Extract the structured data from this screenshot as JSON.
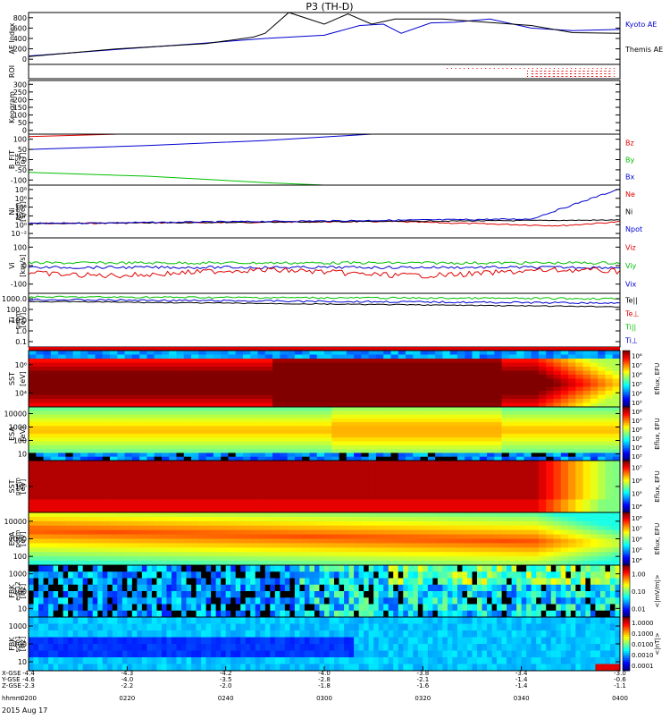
{
  "title": "P3 (TH-D)",
  "date": "2015 Aug 17",
  "footer": {
    "row_labels": [
      "X-GSE",
      "Y-GSE",
      "Z-GSE",
      "hhmm"
    ],
    "ticks": [
      {
        "x": "-4.4",
        "y": "-4.6",
        "z": "-2.3",
        "t": "0200"
      },
      {
        "x": "-4.3",
        "y": "-4.0",
        "z": "-2.2",
        "t": "0220"
      },
      {
        "x": "-4.2",
        "y": "-3.5",
        "z": "-2.0",
        "t": "0240"
      },
      {
        "x": "-4.0",
        "y": "-2.8",
        "z": "-1.8",
        "t": "0300"
      },
      {
        "x": "-3.8",
        "y": "-2.1",
        "z": "-1.6",
        "t": "0320"
      },
      {
        "x": "-3.4",
        "y": "-1.4",
        "z": "-1.4",
        "t": "0340"
      },
      {
        "x": "-3.0",
        "y": "-0.6",
        "z": "-1.1",
        "t": "0400"
      }
    ]
  },
  "colors": {
    "red": "#e00000",
    "green": "#00c000",
    "blue": "#0000d0",
    "black": "#000000"
  },
  "chart_data": [
    {
      "id": "ae",
      "type": "line",
      "ylabel": "AE Index",
      "yticks": [
        "800",
        "600",
        "400",
        "200",
        "0"
      ],
      "ylim": [
        0,
        800
      ],
      "series": [
        {
          "name": "Kyoto AE",
          "color": "blue",
          "x": [
            0,
            15,
            30,
            40,
            50,
            56,
            60,
            63,
            68,
            72,
            78,
            85,
            92,
            100
          ],
          "y": [
            130,
            230,
            330,
            400,
            450,
            600,
            620,
            480,
            640,
            650,
            700,
            560,
            520,
            540
          ]
        },
        {
          "name": "Themis AE",
          "color": "black",
          "x": [
            0,
            15,
            30,
            38,
            40,
            44,
            50,
            54,
            58,
            62,
            70,
            85,
            92,
            100
          ],
          "y": [
            120,
            240,
            320,
            420,
            480,
            800,
            620,
            780,
            620,
            700,
            700,
            600,
            490,
            480
          ]
        }
      ]
    },
    {
      "id": "roi",
      "type": "line",
      "ylabel": "ROI",
      "yticks": []
    },
    {
      "id": "keogram",
      "type": "line",
      "ylabel": "Keogram",
      "yticks": [
        "300",
        "250",
        "200",
        "150",
        "100",
        "50",
        "0"
      ]
    },
    {
      "id": "bfit",
      "type": "line",
      "ylabel": "B_FIT",
      "ylabel2": "GSE",
      "ylabel3": "[nT]",
      "yticks": [
        "100",
        "50",
        "0",
        "-50",
        "-100"
      ],
      "ylim": [
        -100,
        100
      ],
      "series": [
        {
          "name": "Bz",
          "color": "red",
          "x": [
            0,
            15
          ],
          "y": [
            90,
            100
          ]
        },
        {
          "name": "By",
          "color": "green",
          "x": [
            0,
            20,
            40,
            50
          ],
          "y": [
            -50,
            -65,
            -90,
            -100
          ]
        },
        {
          "name": "Bx",
          "color": "blue",
          "x": [
            0,
            20,
            40,
            58
          ],
          "y": [
            40,
            55,
            75,
            100
          ]
        }
      ]
    },
    {
      "id": "ni",
      "type": "line",
      "ylabel": "Ni",
      "ylabel2": "peem",
      "ylabel3": "[1/cc]",
      "yticks": [
        "10⁸",
        "10⁶",
        "10⁴",
        "10²",
        "10⁰",
        "10⁻²"
      ],
      "ylim": [
        -2,
        8
      ],
      "series": [
        {
          "name": "Ne",
          "color": "red"
        },
        {
          "name": "Ni",
          "color": "black"
        },
        {
          "name": "Npot",
          "color": "blue"
        }
      ]
    },
    {
      "id": "vi",
      "type": "line",
      "ylabel": "Vi",
      "ylabel3": "[km/s]",
      "yticks": [
        "100",
        "0",
        "-100"
      ],
      "ylim": [
        -150,
        150
      ],
      "series": [
        {
          "name": "Viz",
          "color": "red"
        },
        {
          "name": "Viy",
          "color": "green"
        },
        {
          "name": "Vix",
          "color": "blue"
        }
      ]
    },
    {
      "id": "ti",
      "type": "line",
      "ylabel": "Ti",
      "ylabel2": "peem",
      "ylabel3": "[eV]",
      "yticks": [
        "1000.0",
        "100.0",
        "10.0",
        "1.0",
        "0.1"
      ],
      "ylim": [
        -1,
        3
      ],
      "series": [
        {
          "name": "Te||",
          "color": "black"
        },
        {
          "name": "Te⊥",
          "color": "red"
        },
        {
          "name": "Ti||",
          "color": "green"
        },
        {
          "name": "Ti⊥",
          "color": "blue"
        }
      ]
    },
    {
      "id": "sst1",
      "type": "heatmap",
      "ylabel": "SST",
      "ylabel3": "[eV]",
      "yticks": [
        "10⁶",
        "10⁴"
      ],
      "cbar_label": "Eflux, EFU",
      "cbar_ticks": [
        "10⁸",
        "10⁷",
        "10⁶",
        "10⁵",
        "10⁴",
        "10³"
      ]
    },
    {
      "id": "esa1",
      "type": "heatmap",
      "ylabel": "ESA",
      "ylabel3": "[eV]",
      "yticks": [
        "10000",
        "1000",
        "100",
        "10"
      ],
      "cbar_label": "Eflux, EFU",
      "cbar_ticks": [
        "10⁸",
        "10⁷",
        "10⁶",
        "10⁵",
        "10⁴",
        "10³"
      ]
    },
    {
      "id": "sst2",
      "type": "heatmap",
      "ylabel": "SST",
      "ylabel2": "peem",
      "ylabel3": "[eV]",
      "yticks": [
        "10⁵"
      ],
      "cbar_label": "Eflux, EFU",
      "cbar_ticks": [
        "10⁷",
        "10⁶",
        "10⁵",
        "10⁴"
      ]
    },
    {
      "id": "esa2",
      "type": "heatmap",
      "ylabel": "ESA",
      "ylabel2": "peem",
      "ylabel3": "[eV]",
      "yticks": [
        "10000",
        "1000",
        "100"
      ],
      "cbar_label": "Eflux, EFU",
      "cbar_ticks": [
        "10⁸",
        "10⁷",
        "10⁶",
        "10⁵",
        "10⁴"
      ]
    },
    {
      "id": "fbk1",
      "type": "heatmap",
      "ylabel": "FBK",
      "ylabel2": "edc12",
      "ylabel3": "[Hz]",
      "yticks": [
        "1000",
        "100",
        "10"
      ],
      "cbar_label": "<|mV/m|>",
      "cbar_ticks": [
        "1.00",
        "0.10",
        "0.01"
      ]
    },
    {
      "id": "fbk2",
      "type": "heatmap",
      "ylabel": "FBK",
      "ylabel2": "scm1",
      "ylabel3": "[Hz]",
      "yticks": [
        "1000",
        "100",
        "10"
      ],
      "cbar_label": "<|nT|>",
      "cbar_ticks": [
        "1.0000",
        "0.1000",
        "0.0100",
        "0.0010",
        "0.0001"
      ]
    }
  ]
}
